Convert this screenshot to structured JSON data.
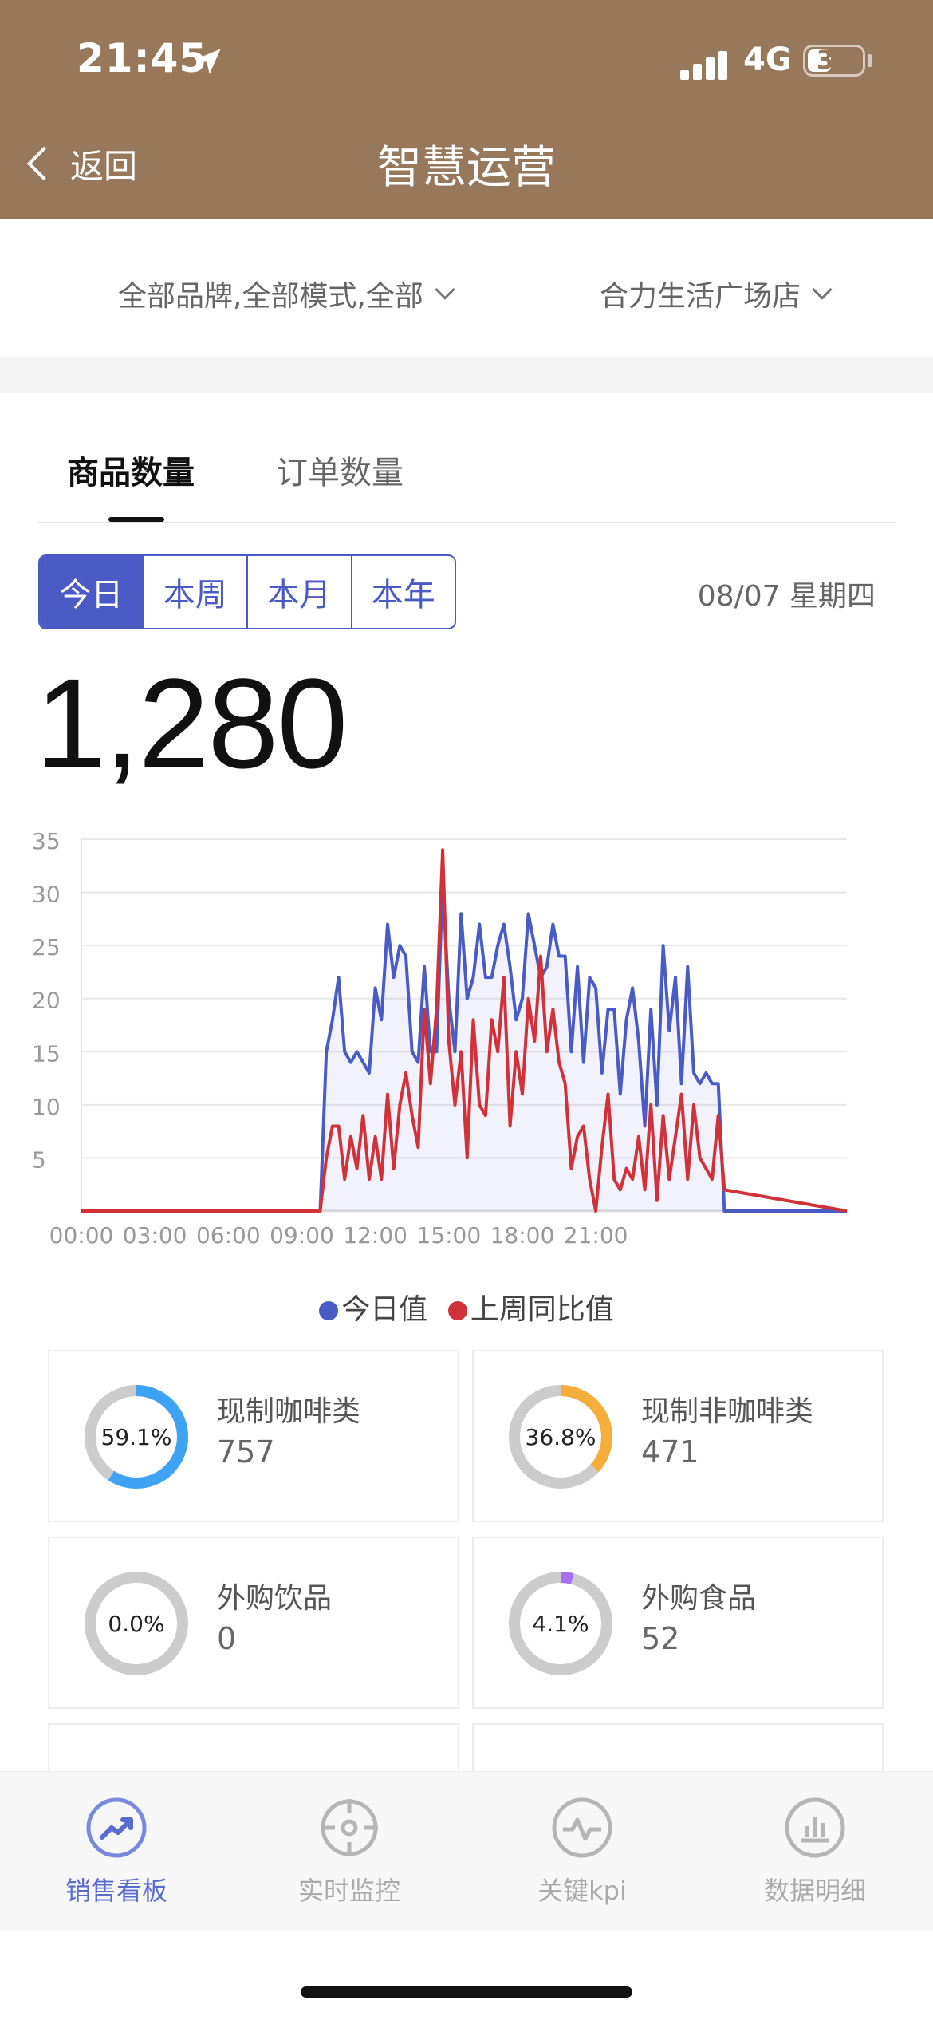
{
  "status_bar": {
    "time": "21:45",
    "network": "4G",
    "battery": "31"
  },
  "header": {
    "back_label": "返回",
    "title": "智慧运营"
  },
  "filters": {
    "brand_filter": "全部品牌,全部模式,全部",
    "store_filter": "合力生活广场店"
  },
  "tabs": [
    {
      "label": "商品数量",
      "active": true
    },
    {
      "label": "订单数量",
      "active": false
    }
  ],
  "period": {
    "options": [
      "今日",
      "本周",
      "本月",
      "本年"
    ],
    "selected": "今日"
  },
  "date_label": "08/07 星期四",
  "total_value": "1,280",
  "chart_data": {
    "type": "line",
    "title": "",
    "xlabel": "",
    "ylabel": "",
    "ylim": [
      0,
      35
    ],
    "yticks": [
      5,
      10,
      15,
      20,
      25,
      30,
      35
    ],
    "xticks": [
      "00:00",
      "03:00",
      "06:00",
      "09:00",
      "12:00",
      "15:00",
      "18:00",
      "21:00"
    ],
    "grid": true,
    "legend": "bottom",
    "x_range_hours": [
      0,
      23.75
    ],
    "series": [
      {
        "name": "今日值",
        "color": "#4a5bc6",
        "points": [
          [
            0,
            0
          ],
          [
            9.75,
            0
          ],
          [
            10,
            15
          ],
          [
            10.25,
            18
          ],
          [
            10.5,
            22
          ],
          [
            10.75,
            15
          ],
          [
            11,
            14
          ],
          [
            11.25,
            15
          ],
          [
            11.5,
            14
          ],
          [
            11.75,
            13
          ],
          [
            12,
            21
          ],
          [
            12.25,
            18
          ],
          [
            12.5,
            27
          ],
          [
            12.75,
            22
          ],
          [
            13,
            25
          ],
          [
            13.25,
            24
          ],
          [
            13.5,
            15
          ],
          [
            13.75,
            14
          ],
          [
            14,
            23
          ],
          [
            14.25,
            15
          ],
          [
            14.5,
            15
          ],
          [
            14.75,
            31
          ],
          [
            15,
            20
          ],
          [
            15.25,
            15
          ],
          [
            15.5,
            28
          ],
          [
            15.75,
            20
          ],
          [
            16,
            22
          ],
          [
            16.25,
            27
          ],
          [
            16.5,
            22
          ],
          [
            16.75,
            22
          ],
          [
            17,
            25
          ],
          [
            17.25,
            27
          ],
          [
            17.5,
            23
          ],
          [
            17.75,
            18
          ],
          [
            18,
            20
          ],
          [
            18.25,
            28
          ],
          [
            18.5,
            25
          ],
          [
            18.75,
            22
          ],
          [
            19,
            23
          ],
          [
            19.25,
            27
          ],
          [
            19.5,
            24
          ],
          [
            19.75,
            24
          ],
          [
            20,
            15
          ],
          [
            20.25,
            23
          ],
          [
            20.5,
            14
          ],
          [
            20.75,
            22
          ],
          [
            21,
            21
          ],
          [
            21.25,
            13
          ],
          [
            21.5,
            19
          ],
          [
            21.75,
            19
          ],
          [
            22,
            11
          ],
          [
            22.25,
            18
          ],
          [
            22.5,
            21
          ],
          [
            22.75,
            16
          ],
          [
            23,
            8
          ],
          [
            23.25,
            19
          ],
          [
            23.5,
            10
          ],
          [
            23.75,
            25
          ],
          [
            24,
            17
          ],
          [
            24.25,
            22
          ],
          [
            24.5,
            12
          ],
          [
            24.75,
            23
          ],
          [
            25,
            13
          ],
          [
            25.25,
            12
          ],
          [
            25.5,
            13
          ],
          [
            25.75,
            12
          ],
          [
            26,
            12
          ],
          [
            26.25,
            0
          ],
          [
            31.25,
            0
          ]
        ]
      },
      {
        "name": "上周同比值",
        "color": "#d1323a",
        "points": [
          [
            0,
            0
          ],
          [
            9.75,
            0
          ],
          [
            10,
            5
          ],
          [
            10.25,
            8
          ],
          [
            10.5,
            8
          ],
          [
            10.75,
            3
          ],
          [
            11,
            7
          ],
          [
            11.25,
            4
          ],
          [
            11.5,
            9
          ],
          [
            11.75,
            3
          ],
          [
            12,
            7
          ],
          [
            12.25,
            3
          ],
          [
            12.5,
            11
          ],
          [
            12.75,
            4
          ],
          [
            13,
            10
          ],
          [
            13.25,
            13
          ],
          [
            13.5,
            9
          ],
          [
            13.75,
            6
          ],
          [
            14,
            19
          ],
          [
            14.25,
            12
          ],
          [
            14.5,
            19
          ],
          [
            14.75,
            34
          ],
          [
            15,
            16
          ],
          [
            15.25,
            10
          ],
          [
            15.5,
            15
          ],
          [
            15.75,
            5
          ],
          [
            16,
            18
          ],
          [
            16.25,
            10
          ],
          [
            16.5,
            9
          ],
          [
            16.75,
            18
          ],
          [
            17,
            15
          ],
          [
            17.25,
            22
          ],
          [
            17.5,
            8
          ],
          [
            17.75,
            15
          ],
          [
            18,
            11
          ],
          [
            18.25,
            20
          ],
          [
            18.5,
            16
          ],
          [
            18.75,
            24
          ],
          [
            19,
            15
          ],
          [
            19.25,
            19
          ],
          [
            19.5,
            14
          ],
          [
            19.75,
            12
          ],
          [
            20,
            4
          ],
          [
            20.25,
            7
          ],
          [
            20.5,
            8
          ],
          [
            20.75,
            3
          ],
          [
            21,
            0
          ],
          [
            21.25,
            6
          ],
          [
            21.5,
            11
          ],
          [
            21.75,
            3
          ],
          [
            22,
            2
          ],
          [
            22.25,
            4
          ],
          [
            22.5,
            3
          ],
          [
            22.75,
            7
          ],
          [
            23,
            2
          ],
          [
            23.25,
            10
          ],
          [
            23.5,
            1
          ],
          [
            23.75,
            9
          ],
          [
            24,
            3
          ],
          [
            24.25,
            7
          ],
          [
            24.5,
            11
          ],
          [
            24.75,
            3
          ],
          [
            25,
            10
          ],
          [
            25.25,
            5
          ],
          [
            25.5,
            4
          ],
          [
            25.75,
            3
          ],
          [
            26,
            9
          ],
          [
            26.25,
            2
          ],
          [
            31.25,
            0
          ]
        ]
      }
    ]
  },
  "categories": [
    {
      "name": "现制咖啡类",
      "value": "757",
      "pct_label": "59.1%",
      "fraction": 0.591,
      "color": "#3ea3f5"
    },
    {
      "name": "现制非咖啡类",
      "value": "471",
      "pct_label": "36.8%",
      "fraction": 0.368,
      "color": "#f6ad3b"
    },
    {
      "name": "外购饮品",
      "value": "0",
      "pct_label": "0.0%",
      "fraction": 0.0,
      "color": "#b9a0f0"
    },
    {
      "name": "外购食品",
      "value": "52",
      "pct_label": "4.1%",
      "fraction": 0.041,
      "color": "#a86ff0"
    }
  ],
  "bottom_tabs": [
    {
      "label": "销售看板",
      "icon": "trend-up-icon",
      "active": true
    },
    {
      "label": "实时监控",
      "icon": "target-icon",
      "active": false
    },
    {
      "label": "关键kpi",
      "icon": "pulse-icon",
      "active": false
    },
    {
      "label": "数据明细",
      "icon": "bar-chart-icon",
      "active": false
    }
  ]
}
